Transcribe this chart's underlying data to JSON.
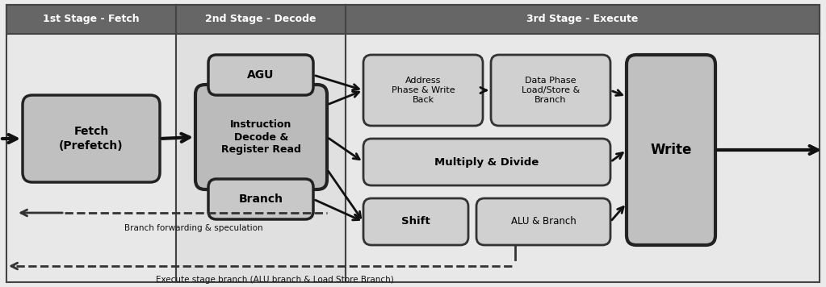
{
  "fig_w": 10.23,
  "fig_h": 3.56,
  "dpi": 100,
  "bg": "#ebebeb",
  "header_fill": "#606060",
  "header_text": "#ffffff",
  "panel_fill": "#e0e0e0",
  "box_dark": "#b8b8b8",
  "box_light": "#d0d0d0",
  "edge": "#222222",
  "s1_label": "1st Stage - Fetch",
  "s2_label": "2nd Stage - Decode",
  "s3_label": "3rd Stage - Execute",
  "fetch_text": "Fetch\n(Prefetch)",
  "agu_text": "AGU",
  "decode_text": "Instruction\nDecode &\nRegister Read",
  "branch_text": "Branch",
  "addr_text": "Address\nPhase & Write\nBack",
  "data_text": "Data Phase\nLoad/Store &\nBranch",
  "mul_text": "Multiply & Divide",
  "shift_text": "Shift",
  "alu_text": "ALU & Branch",
  "write_text": "Write",
  "fwd_text": "Branch forwarding & speculation",
  "exec_text": "Execute stage branch (ALU branch & Load Store Branch)"
}
